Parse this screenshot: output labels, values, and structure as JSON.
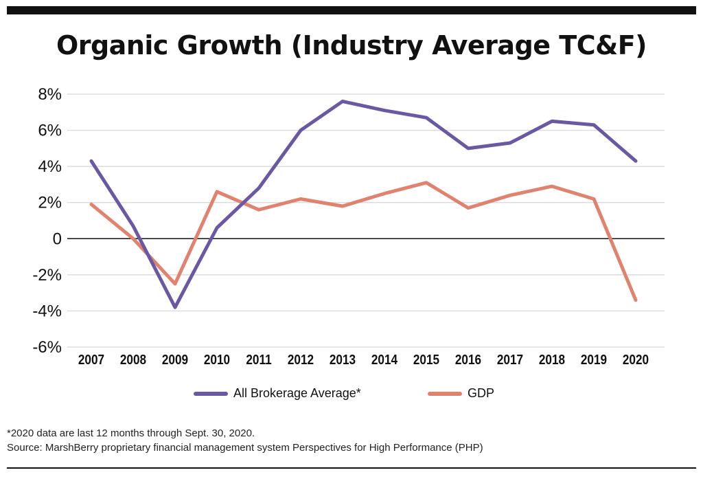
{
  "title": "Organic Growth (Industry Average TC&F)",
  "chart_data": {
    "type": "line",
    "title": "Organic Growth (Industry Average TC&F)",
    "categories": [
      "2007",
      "2008",
      "2009",
      "2010",
      "2011",
      "2012",
      "2013",
      "2014",
      "2015",
      "2016",
      "2017",
      "2018",
      "2019",
      "2020"
    ],
    "series": [
      {
        "name": "All Brokerage Average*",
        "color": "#6a58a3",
        "values": [
          4.3,
          0.7,
          -3.8,
          0.6,
          2.8,
          6.0,
          7.6,
          7.1,
          6.7,
          5.0,
          5.3,
          6.5,
          6.3,
          4.3
        ]
      },
      {
        "name": "GDP",
        "color": "#e0826e",
        "values": [
          1.9,
          0.0,
          -2.5,
          2.6,
          1.6,
          2.2,
          1.8,
          2.5,
          3.1,
          1.7,
          2.4,
          2.9,
          2.2,
          -3.4
        ]
      }
    ],
    "ylim": [
      -6,
      8
    ],
    "yticks": [
      8,
      6,
      4,
      2,
      0,
      -2,
      -4,
      -6
    ],
    "ytick_labels": [
      "8%",
      "6%",
      "4%",
      "2%",
      "0",
      "-2%",
      "-4%",
      "-6%"
    ],
    "grid": true,
    "legend": "bottom"
  },
  "footnotes": {
    "note": "*2020 data are last 12 months through Sept. 30, 2020.",
    "source": "Source: MarshBerry proprietary financial management system Perspectives for High Performance (PHP)"
  }
}
